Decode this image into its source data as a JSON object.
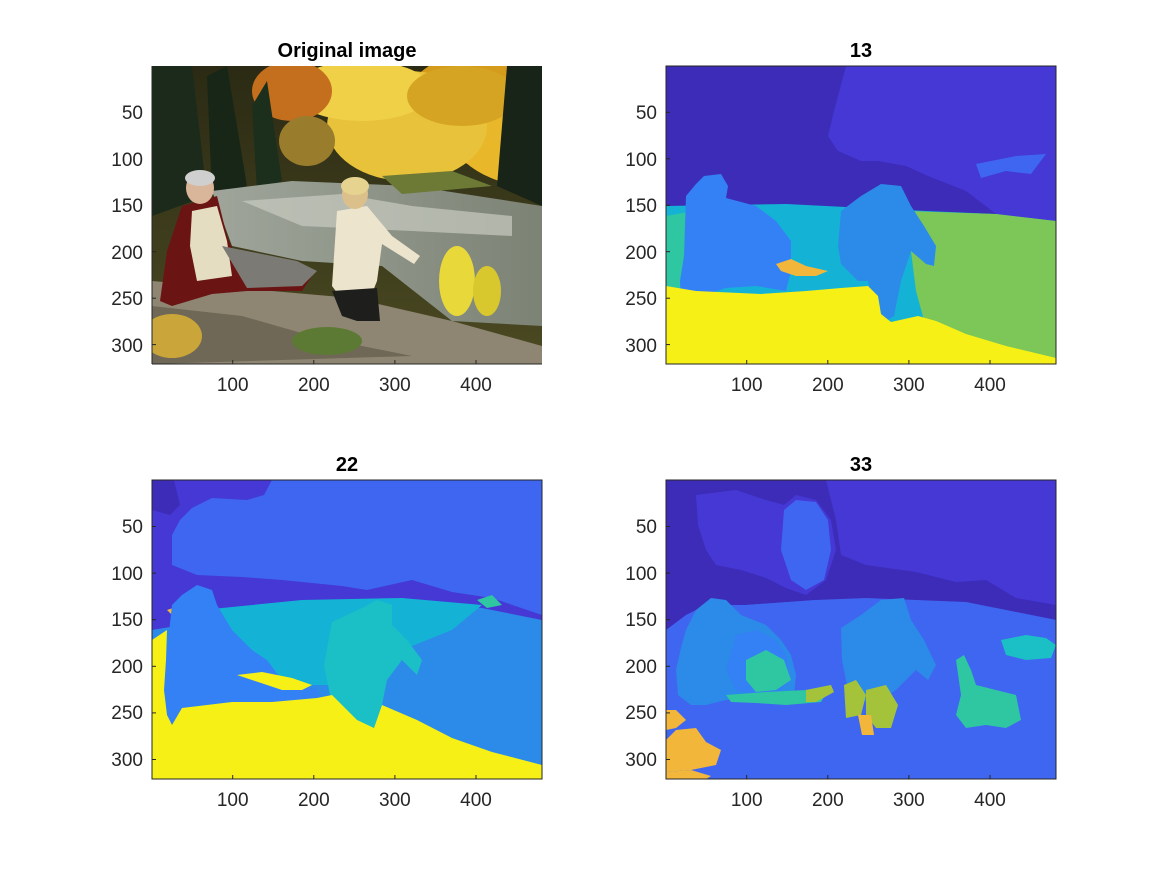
{
  "figure": {
    "colors": {
      "sky_dark": "#3D2CB8",
      "sky_mid": "#4538D5",
      "blue_bright": "#3F66F0",
      "blue_light": "#3481F5",
      "blue_med": "#2C8AE8",
      "cyan": "#14B3D6",
      "teal": "#1BBFC6",
      "green_teal": "#2FC6A2",
      "green": "#7CC758",
      "yellow_green": "#A4C33A",
      "orange": "#F2B73A",
      "yellow": "#F7F017",
      "axis": "#262626"
    },
    "subplots": [
      {
        "id": "original",
        "title": "Original image",
        "image": "photograph of two elderly people by a river in autumn forest",
        "chart_data": {
          "type": "image",
          "title": "Original image",
          "xlim": [
            0.5,
            481.5
          ],
          "ylim": [
            0.5,
            321.5
          ],
          "y_reversed": true,
          "xticks": [
            100,
            200,
            300,
            400
          ],
          "yticks": [
            50,
            100,
            150,
            200,
            250,
            300
          ],
          "xticklabels": [
            "100",
            "200",
            "300",
            "400"
          ],
          "yticklabels": [
            "50",
            "100",
            "150",
            "200",
            "250",
            "300"
          ]
        }
      },
      {
        "id": "seg13",
        "title": "13",
        "chart_data": {
          "type": "heatmap",
          "title": "13",
          "xlim": [
            0.5,
            481.5
          ],
          "ylim": [
            0.5,
            321.5
          ],
          "y_reversed": true,
          "xticks": [
            100,
            200,
            300,
            400
          ],
          "yticks": [
            50,
            100,
            150,
            200,
            250,
            300
          ],
          "xticklabels": [
            "100",
            "200",
            "300",
            "400"
          ],
          "yticklabels": [
            "50",
            "100",
            "150",
            "200",
            "250",
            "300"
          ]
        }
      },
      {
        "id": "seg22",
        "title": "22",
        "chart_data": {
          "type": "heatmap",
          "title": "22",
          "xlim": [
            0.5,
            481.5
          ],
          "ylim": [
            0.5,
            321.5
          ],
          "y_reversed": true,
          "xticks": [
            100,
            200,
            300,
            400
          ],
          "yticks": [
            50,
            100,
            150,
            200,
            250,
            300
          ],
          "xticklabels": [
            "100",
            "200",
            "300",
            "400"
          ],
          "yticklabels": [
            "50",
            "100",
            "150",
            "200",
            "250",
            "300"
          ]
        }
      },
      {
        "id": "seg33",
        "title": "33",
        "chart_data": {
          "type": "heatmap",
          "title": "33",
          "xlim": [
            0.5,
            481.5
          ],
          "ylim": [
            0.5,
            321.5
          ],
          "y_reversed": true,
          "xticks": [
            100,
            200,
            300,
            400
          ],
          "yticks": [
            50,
            100,
            150,
            200,
            250,
            300
          ],
          "xticklabels": [
            "100",
            "200",
            "300",
            "400"
          ],
          "yticklabels": [
            "50",
            "100",
            "150",
            "200",
            "250",
            "300"
          ]
        }
      }
    ]
  }
}
